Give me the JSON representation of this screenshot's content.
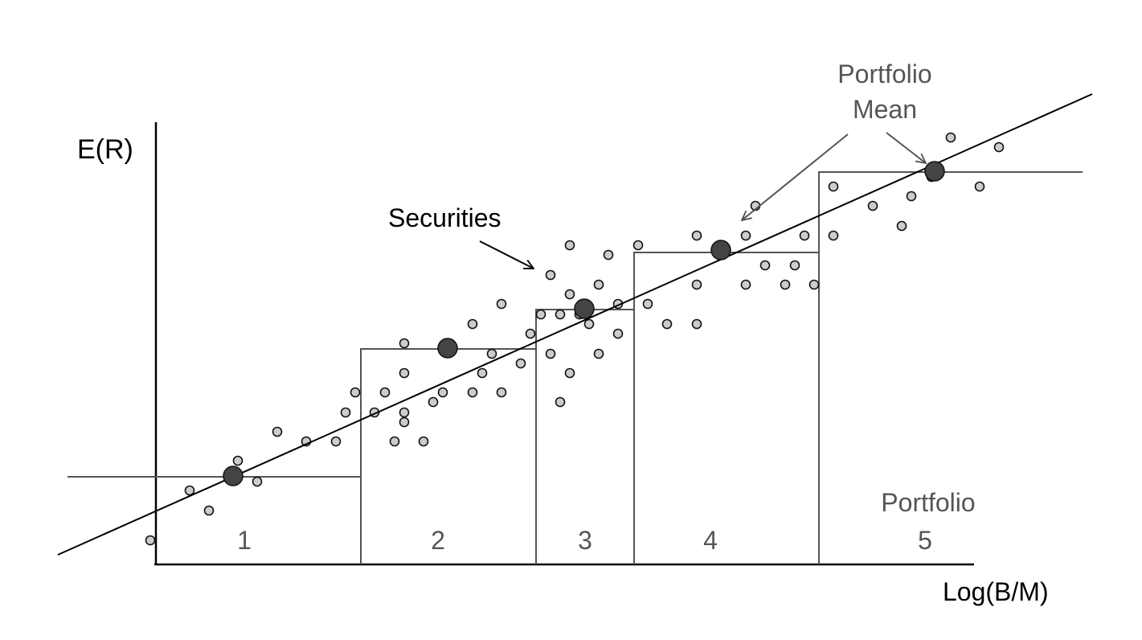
{
  "labels": {
    "y_axis": "E(R)",
    "x_axis": "Log(B/M)",
    "securities": "Securities",
    "portfolio_mean_line1": "Portfolio",
    "portfolio_mean_line2": "Mean",
    "portfolio_word": "Portfolio",
    "portfolio_numbers": [
      "1",
      "2",
      "3",
      "4",
      "5"
    ]
  },
  "colors": {
    "axis": "#000000",
    "step_lines": "#555555",
    "security_dot_fill": "#cccccc",
    "portfolio_mean_fill": "#444444"
  }
}
